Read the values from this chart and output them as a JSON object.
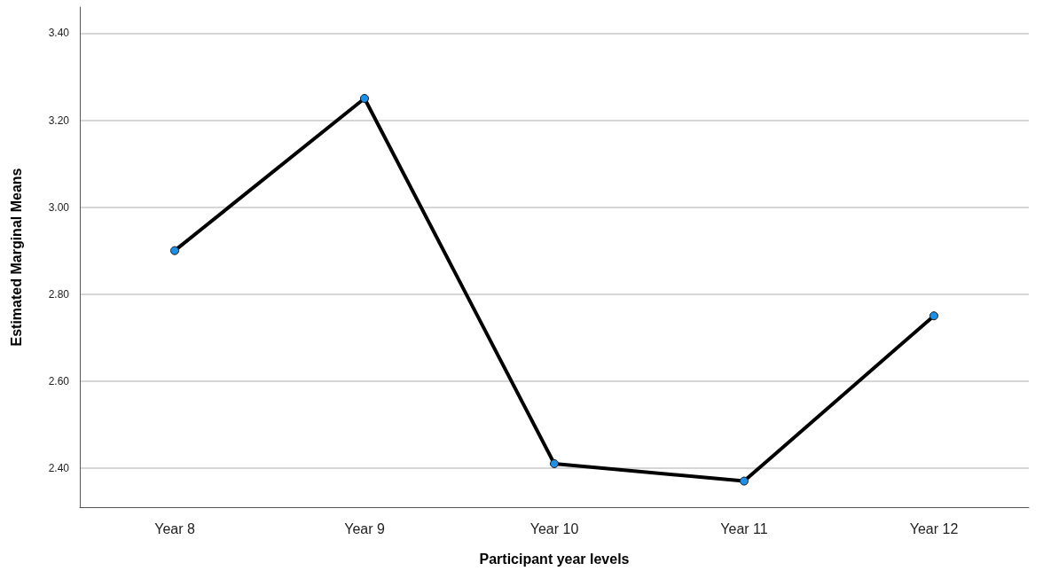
{
  "chart_data": {
    "type": "line",
    "xlabel": "Participant year levels",
    "ylabel": "Estimated Marginal Means",
    "categories": [
      "Year 8",
      "Year 9",
      "Year 10",
      "Year 11",
      "Year 12"
    ],
    "series": [
      {
        "color": "#000000",
        "values": [
          2.9,
          3.25,
          2.41,
          2.37,
          2.75
        ]
      }
    ],
    "ylim": [
      2.31,
      3.46
    ],
    "yticks": [
      {
        "value": 2.4,
        "label": "2.40"
      },
      {
        "value": 2.6,
        "label": "2.60"
      },
      {
        "value": 2.8,
        "label": "2.80"
      },
      {
        "value": 3.0,
        "label": "3.00"
      },
      {
        "value": 3.2,
        "label": "3.20"
      },
      {
        "value": 3.4,
        "label": "3.40"
      }
    ],
    "grid": "y",
    "marker": "circle",
    "line_style": "solid"
  }
}
